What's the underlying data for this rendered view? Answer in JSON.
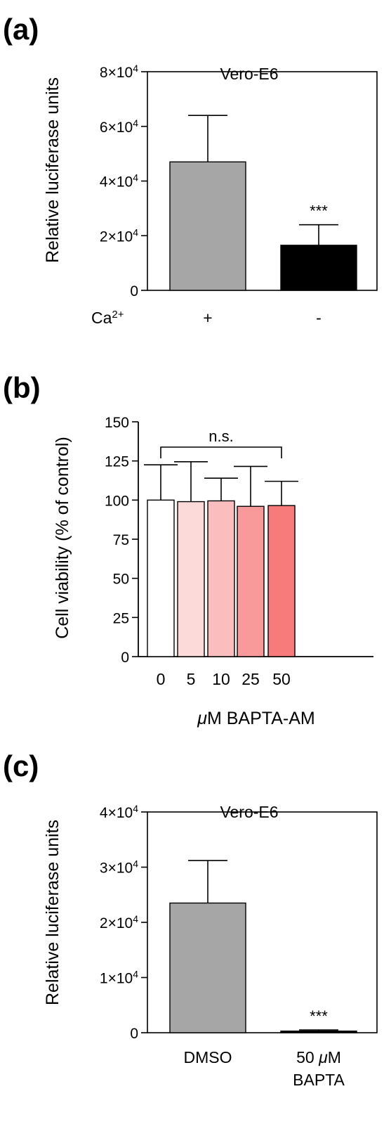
{
  "chart_data": [
    {
      "panel": "(a)",
      "type": "bar",
      "title": "Vero-E6",
      "ylabel": "Relative luciferase units",
      "xlabel": "",
      "row_label": "Ca",
      "row_label_sup": "2+",
      "categories": [
        "+",
        "-"
      ],
      "values": [
        47000,
        16500
      ],
      "errors": [
        17000,
        7500
      ],
      "colors": [
        "#a6a6a6",
        "#000000"
      ],
      "significance": [
        "",
        "***"
      ],
      "ylim": [
        0,
        80000
      ],
      "yticks": [
        {
          "value": 0,
          "base": "0",
          "exp": ""
        },
        {
          "value": 20000,
          "base": "2×10",
          "exp": "4"
        },
        {
          "value": 40000,
          "base": "4×10",
          "exp": "4"
        },
        {
          "value": 60000,
          "base": "6×10",
          "exp": "4"
        },
        {
          "value": 80000,
          "base": "8×10",
          "exp": "4"
        }
      ],
      "grid": false,
      "legend": "none"
    },
    {
      "panel": "(b)",
      "type": "bar",
      "title": "",
      "ylabel": "Cell viability (% of control)",
      "xlabel_mu": "μ",
      "xlabel_rest": "M BAPTA-AM",
      "categories": [
        "0",
        "5",
        "10",
        "25",
        "50"
      ],
      "values": [
        100,
        99,
        99.5,
        96,
        96.5
      ],
      "errors": [
        22.5,
        25.5,
        14.5,
        25.5,
        15.5
      ],
      "colors": [
        "#ffffff",
        "#fddada",
        "#fbbdbd",
        "#f99a9a",
        "#f77b7b"
      ],
      "bracket_label": "n.s.",
      "ylim": [
        0,
        150
      ],
      "yticks": [
        0,
        25,
        50,
        75,
        100,
        125,
        150
      ],
      "grid": false,
      "legend": "none"
    },
    {
      "panel": "(c)",
      "type": "bar",
      "title": "Vero-E6",
      "ylabel": "Relative luciferase units",
      "xlabel": "",
      "categories": [
        {
          "lines": [
            "DMSO"
          ]
        },
        {
          "lines": [
            "50 μM",
            "BAPTA"
          ]
        }
      ],
      "values": [
        23500,
        300
      ],
      "errors": [
        7700,
        200
      ],
      "colors": [
        "#a6a6a6",
        "#000000"
      ],
      "significance": [
        "",
        "***"
      ],
      "ylim": [
        0,
        40000
      ],
      "yticks": [
        {
          "value": 0,
          "base": "0",
          "exp": ""
        },
        {
          "value": 10000,
          "base": "1×10",
          "exp": "4"
        },
        {
          "value": 20000,
          "base": "2×10",
          "exp": "4"
        },
        {
          "value": 30000,
          "base": "3×10",
          "exp": "4"
        },
        {
          "value": 40000,
          "base": "4×10",
          "exp": "4"
        }
      ],
      "grid": false,
      "legend": "none"
    }
  ]
}
